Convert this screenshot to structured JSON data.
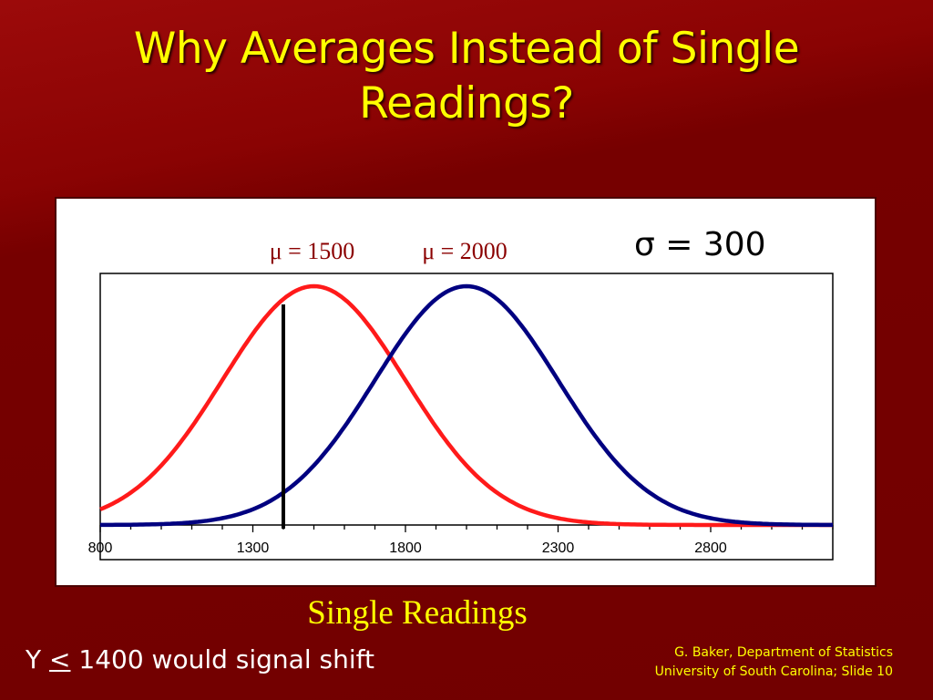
{
  "slide": {
    "title_line1": "Why Averages Instead of Single",
    "title_line2": "Readings?",
    "footnote_prefix": "Y ",
    "footnote_symbol": "<",
    "footnote_suffix": " 1400 would signal shift",
    "credit_line1": "G. Baker, Department of Statistics",
    "credit_line2": "University of South Carolina; Slide 10"
  },
  "colors": {
    "background": "#7a0000",
    "title": "#ffff00",
    "series_1": "#ff1a1a",
    "series_2": "#000080",
    "mu_label": "#8b0000"
  },
  "chart_data": {
    "type": "line",
    "xlabel": "Single Readings",
    "ylabel": "",
    "xlim": [
      800,
      3200
    ],
    "ylim": [
      0,
      1
    ],
    "x_ticks": [
      800,
      1300,
      1800,
      2300,
      2800
    ],
    "x_tick_labels": [
      "800",
      "1300",
      "1800",
      "2300",
      "2800"
    ],
    "minor_tick_step": 100,
    "grid": false,
    "sigma": 300,
    "sigma_label": "σ = 300",
    "series": [
      {
        "mu": 1500,
        "label": "μ = 1500",
        "color": "#ff1a1a"
      },
      {
        "mu": 2000,
        "label": "μ = 2000",
        "color": "#000080"
      }
    ],
    "threshold_line_x": 1400
  }
}
